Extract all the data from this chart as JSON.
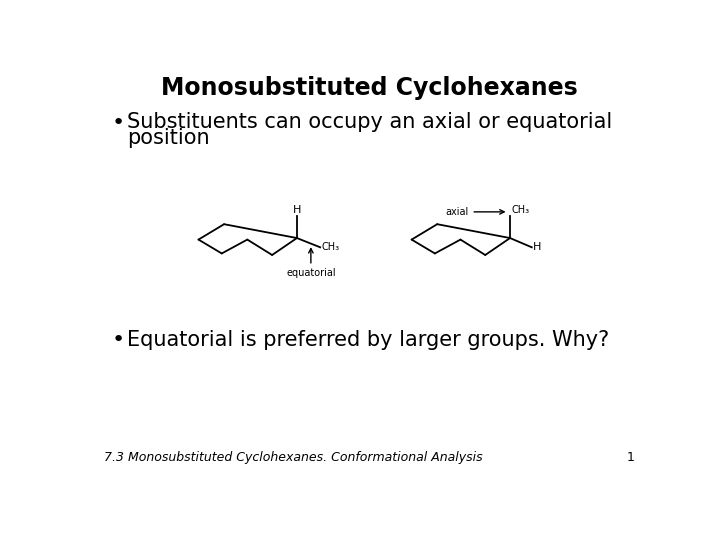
{
  "title": "Monosubstituted Cyclohexanes",
  "bullet1_line1": "Substituents can occupy an axial or equatorial",
  "bullet1_line2": "position",
  "bullet2": "Equatorial is preferred by larger groups. Why?",
  "footer": "7.3 Monosubstituted Cyclohexanes. Conformational Analysis",
  "page_num": "1",
  "bg_color": "#ffffff",
  "text_color": "#000000",
  "title_fontsize": 17,
  "bullet_fontsize": 15,
  "footer_fontsize": 9,
  "chem_fontsize": 8,
  "label_fontsize": 7
}
